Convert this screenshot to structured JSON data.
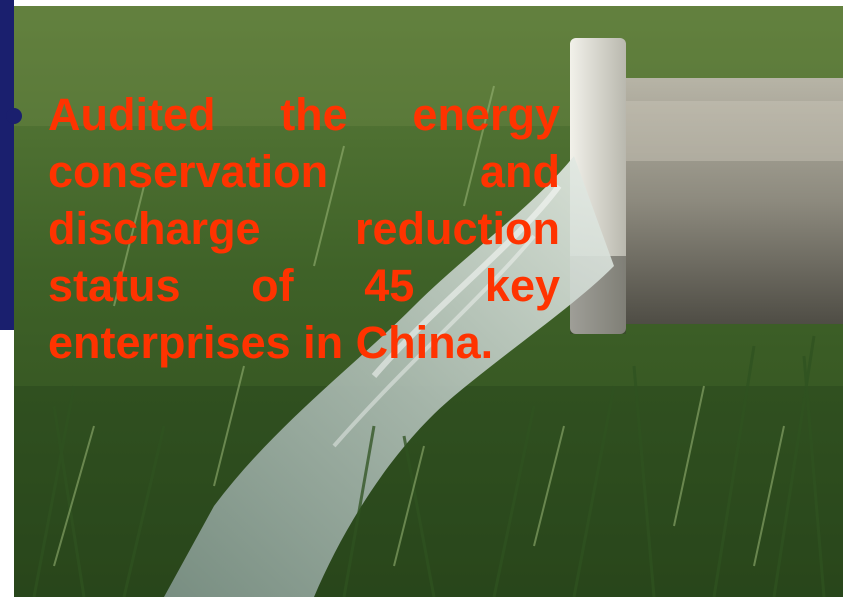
{
  "slide": {
    "bullet_text": "Audited the energy conservation and discharge reduction status of 45 key enterprises in China.",
    "text_color": "#ff3300",
    "bar_color": "#1a1f6e"
  },
  "background_photo": {
    "subject-icon": "drainage-pipe-in-grass-photo"
  }
}
